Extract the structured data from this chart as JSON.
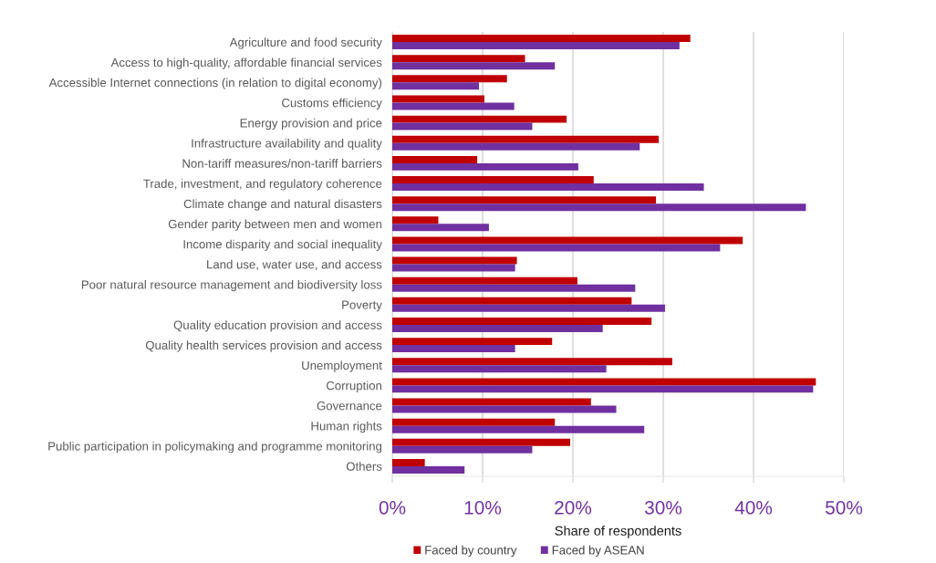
{
  "chart_data": {
    "type": "bar",
    "orientation": "horizontal",
    "categories": [
      "Agriculture and food security",
      "Access to high-quality, affordable financial services",
      "Accessible Internet connections (in relation to digital economy)",
      "Customs efficiency",
      "Energy provision and price",
      "Infrastructure availability and quality",
      "Non-tariff measures/non-tariff barriers",
      "Trade, investment, and regulatory coherence",
      "Climate change and natural disasters",
      "Gender parity between men and women",
      "Income disparity and social inequality",
      "Land use, water use, and access",
      "Poor natural resource management and biodiversity loss",
      "Poverty",
      "Quality education provision and access",
      "Quality health services provision and access",
      "Unemployment",
      "Corruption",
      "Governance",
      "Human rights",
      "Public participation in policymaking and programme monitoring",
      "Others"
    ],
    "series": [
      {
        "name": "Faced by country",
        "color": "#c00000",
        "values": [
          33.0,
          14.7,
          12.7,
          10.2,
          19.3,
          29.5,
          9.4,
          22.3,
          29.2,
          5.1,
          38.8,
          13.8,
          20.5,
          26.5,
          28.7,
          17.7,
          31.0,
          46.9,
          22.0,
          18.0,
          19.7,
          3.6
        ]
      },
      {
        "name": "Faced by ASEAN",
        "color": "#7030a0",
        "values": [
          31.8,
          18.0,
          9.6,
          13.5,
          15.5,
          27.4,
          20.6,
          34.5,
          45.8,
          10.7,
          36.3,
          13.6,
          26.9,
          30.2,
          23.3,
          13.6,
          23.7,
          46.6,
          24.8,
          27.9,
          15.5,
          8.0
        ]
      }
    ],
    "xlabel": "Share of respondents",
    "xlim": [
      0,
      50
    ],
    "xticks": [
      {
        "value": 0,
        "label": "0%"
      },
      {
        "value": 10,
        "label": "10%"
      },
      {
        "value": 20,
        "label": "20%"
      },
      {
        "value": 30,
        "label": "30%"
      },
      {
        "value": 40,
        "label": "40%"
      },
      {
        "value": 50,
        "label": "50%"
      }
    ],
    "grid": "x",
    "legend": "bottom"
  }
}
